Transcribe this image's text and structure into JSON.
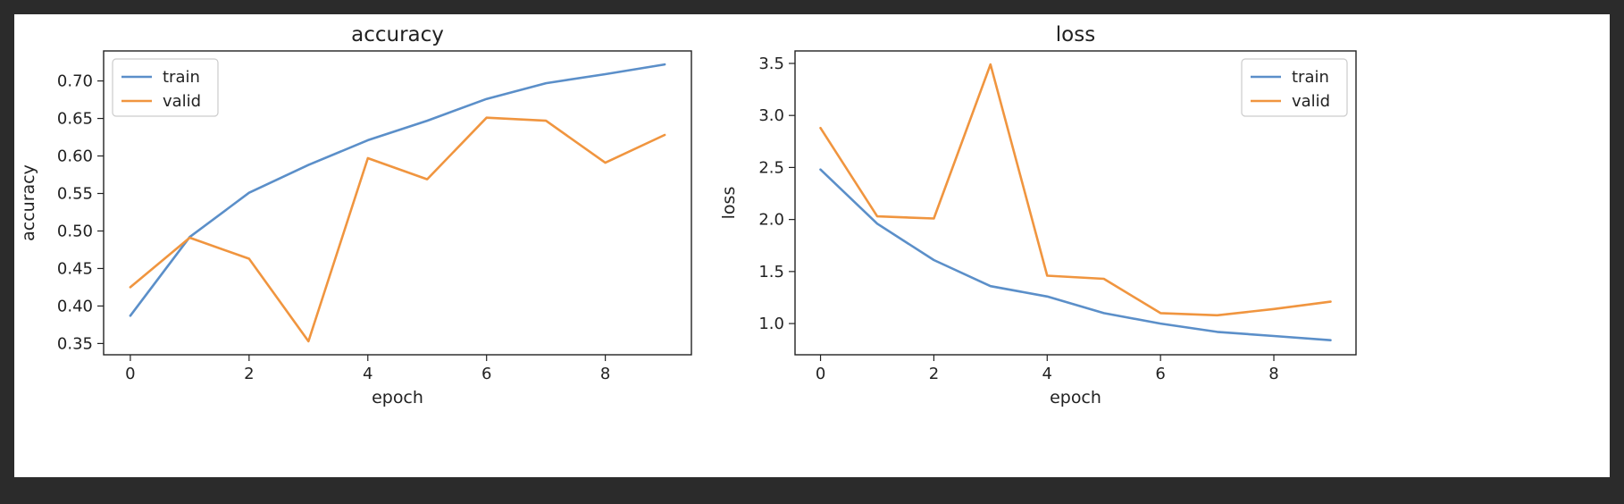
{
  "colors": {
    "train": "#5b8fc9",
    "valid": "#f0953f",
    "frame": "#222222",
    "background": "#ffffff",
    "window": "#2b2b2b"
  },
  "chart_data": [
    {
      "type": "line",
      "title": "accuracy",
      "xlabel": "epoch",
      "ylabel": "accuracy",
      "x": [
        0,
        1,
        2,
        3,
        4,
        5,
        6,
        7,
        8,
        9
      ],
      "xlim": [
        -0.45,
        9.45
      ],
      "ylim": [
        0.335,
        0.74
      ],
      "xticks": [
        0,
        2,
        4,
        6,
        8
      ],
      "yticks": [
        "0.35",
        "0.40",
        "0.45",
        "0.50",
        "0.55",
        "0.60",
        "0.65",
        "0.70"
      ],
      "grid": false,
      "legend": "top-left",
      "series": [
        {
          "name": "train",
          "color": "#5b8fc9",
          "values": [
            0.387,
            0.492,
            0.551,
            0.588,
            0.621,
            0.647,
            0.676,
            0.697,
            0.709,
            0.722
          ]
        },
        {
          "name": "valid",
          "color": "#f0953f",
          "values": [
            0.425,
            0.491,
            0.463,
            0.353,
            0.597,
            0.569,
            0.651,
            0.647,
            0.591,
            0.628
          ]
        }
      ]
    },
    {
      "type": "line",
      "title": "loss",
      "xlabel": "epoch",
      "ylabel": "loss",
      "x": [
        0,
        1,
        2,
        3,
        4,
        5,
        6,
        7,
        8,
        9
      ],
      "xlim": [
        -0.45,
        9.45
      ],
      "ylim": [
        0.7,
        3.62
      ],
      "xticks": [
        0,
        2,
        4,
        6,
        8
      ],
      "yticks": [
        "1.0",
        "1.5",
        "2.0",
        "2.5",
        "3.0",
        "3.5"
      ],
      "grid": false,
      "legend": "top-right",
      "series": [
        {
          "name": "train",
          "color": "#5b8fc9",
          "values": [
            2.48,
            1.96,
            1.61,
            1.36,
            1.26,
            1.1,
            1.0,
            0.92,
            0.88,
            0.84
          ]
        },
        {
          "name": "valid",
          "color": "#f0953f",
          "values": [
            2.88,
            2.03,
            2.01,
            3.49,
            1.46,
            1.43,
            1.1,
            1.08,
            1.14,
            1.21
          ]
        }
      ]
    }
  ]
}
